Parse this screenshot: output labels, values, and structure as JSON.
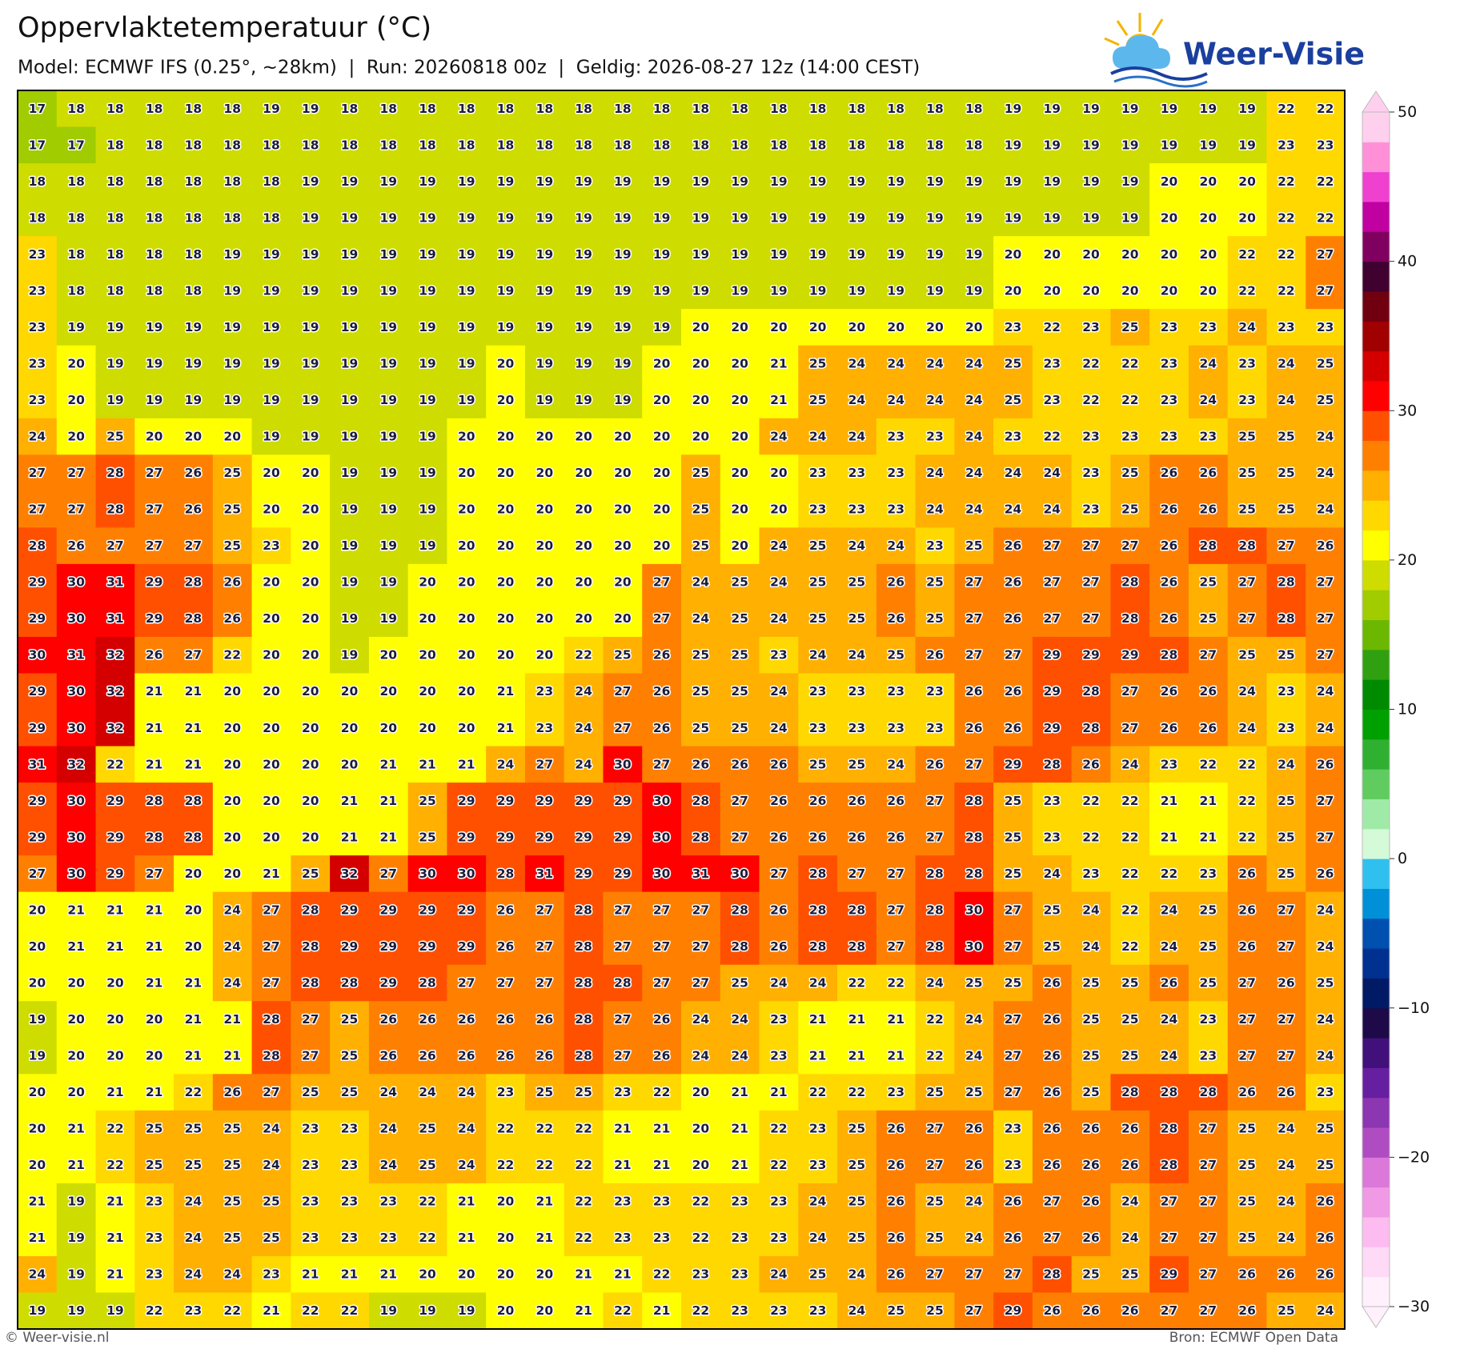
{
  "header": {
    "title": "Oppervlaktetemperatuur (°C)",
    "subtitle": "Model: ECMWF IFS (0.25°, ~28km)  |  Run: 20260818 00z  |  Geldig: 2026-08-27 12z (14:00 CEST)"
  },
  "logo": "Weer-Visie",
  "map": {
    "values": [
      [
        17,
        18,
        18,
        18,
        18,
        18,
        19,
        19,
        18,
        18,
        18,
        18,
        18,
        18,
        18,
        18,
        18,
        18,
        18,
        18,
        18,
        18,
        18,
        18,
        18,
        19,
        19,
        19,
        19,
        19,
        19,
        19,
        22,
        22
      ],
      [
        17,
        17,
        18,
        18,
        18,
        18,
        18,
        18,
        18,
        18,
        18,
        18,
        18,
        18,
        18,
        18,
        18,
        18,
        18,
        18,
        18,
        18,
        18,
        18,
        18,
        19,
        19,
        19,
        19,
        19,
        19,
        19,
        23,
        23
      ],
      [
        18,
        18,
        18,
        18,
        18,
        18,
        18,
        19,
        19,
        19,
        19,
        19,
        19,
        19,
        19,
        19,
        19,
        19,
        19,
        19,
        19,
        19,
        19,
        19,
        19,
        19,
        19,
        19,
        19,
        20,
        20,
        20,
        22,
        22
      ],
      [
        18,
        18,
        18,
        18,
        18,
        18,
        18,
        19,
        19,
        19,
        19,
        19,
        19,
        19,
        19,
        19,
        19,
        19,
        19,
        19,
        19,
        19,
        19,
        19,
        19,
        19,
        19,
        19,
        19,
        20,
        20,
        20,
        22,
        22
      ],
      [
        23,
        18,
        18,
        18,
        18,
        19,
        19,
        19,
        19,
        19,
        19,
        19,
        19,
        19,
        19,
        19,
        19,
        19,
        19,
        19,
        19,
        19,
        19,
        19,
        19,
        20,
        20,
        20,
        20,
        20,
        20,
        22,
        22,
        27
      ],
      [
        23,
        18,
        18,
        18,
        18,
        19,
        19,
        19,
        19,
        19,
        19,
        19,
        19,
        19,
        19,
        19,
        19,
        19,
        19,
        19,
        19,
        19,
        19,
        19,
        19,
        20,
        20,
        20,
        20,
        20,
        20,
        22,
        22,
        27
      ],
      [
        23,
        19,
        19,
        19,
        19,
        19,
        19,
        19,
        19,
        19,
        19,
        19,
        19,
        19,
        19,
        19,
        19,
        20,
        20,
        20,
        20,
        20,
        20,
        20,
        20,
        23,
        22,
        23,
        25,
        23,
        23,
        24,
        23,
        23
      ],
      [
        23,
        20,
        19,
        19,
        19,
        19,
        19,
        19,
        19,
        19,
        19,
        19,
        20,
        19,
        19,
        19,
        20,
        20,
        20,
        21,
        25,
        24,
        24,
        24,
        24,
        25,
        23,
        22,
        22,
        23,
        24,
        23,
        24,
        25
      ],
      [
        23,
        20,
        19,
        19,
        19,
        19,
        19,
        19,
        19,
        19,
        19,
        19,
        20,
        19,
        19,
        19,
        20,
        20,
        20,
        21,
        25,
        24,
        24,
        24,
        24,
        25,
        23,
        22,
        22,
        23,
        24,
        23,
        24,
        25
      ],
      [
        24,
        20,
        25,
        20,
        20,
        20,
        19,
        19,
        19,
        19,
        19,
        20,
        20,
        20,
        20,
        20,
        20,
        20,
        20,
        24,
        24,
        24,
        23,
        23,
        24,
        23,
        22,
        23,
        23,
        23,
        23,
        25,
        25,
        24
      ],
      [
        27,
        27,
        28,
        27,
        26,
        25,
        20,
        20,
        19,
        19,
        19,
        20,
        20,
        20,
        20,
        20,
        20,
        25,
        20,
        20,
        23,
        23,
        23,
        24,
        24,
        24,
        24,
        23,
        25,
        26,
        26,
        25,
        25,
        24
      ],
      [
        27,
        27,
        28,
        27,
        26,
        25,
        20,
        20,
        19,
        19,
        19,
        20,
        20,
        20,
        20,
        20,
        20,
        25,
        20,
        20,
        23,
        23,
        23,
        24,
        24,
        24,
        24,
        23,
        25,
        26,
        26,
        25,
        25,
        24
      ],
      [
        28,
        26,
        27,
        27,
        27,
        25,
        23,
        20,
        19,
        19,
        19,
        20,
        20,
        20,
        20,
        20,
        20,
        25,
        20,
        24,
        25,
        24,
        24,
        23,
        25,
        26,
        27,
        27,
        27,
        26,
        28,
        28,
        27,
        26
      ],
      [
        29,
        30,
        31,
        29,
        28,
        26,
        20,
        20,
        19,
        19,
        20,
        20,
        20,
        20,
        20,
        20,
        27,
        24,
        25,
        24,
        25,
        25,
        26,
        25,
        27,
        26,
        27,
        27,
        28,
        26,
        25,
        27,
        28,
        27
      ],
      [
        29,
        30,
        31,
        29,
        28,
        26,
        20,
        20,
        19,
        19,
        20,
        20,
        20,
        20,
        20,
        20,
        27,
        24,
        25,
        24,
        25,
        25,
        26,
        25,
        27,
        26,
        27,
        27,
        28,
        26,
        25,
        27,
        28,
        27
      ],
      [
        30,
        31,
        32,
        26,
        27,
        22,
        20,
        20,
        19,
        20,
        20,
        20,
        20,
        20,
        22,
        25,
        26,
        25,
        25,
        23,
        24,
        24,
        25,
        26,
        27,
        27,
        29,
        29,
        29,
        28,
        27,
        25,
        25,
        27
      ],
      [
        29,
        30,
        32,
        21,
        21,
        20,
        20,
        20,
        20,
        20,
        20,
        20,
        21,
        23,
        24,
        27,
        26,
        25,
        25,
        24,
        23,
        23,
        23,
        23,
        26,
        26,
        29,
        28,
        27,
        26,
        26,
        24,
        23,
        24
      ],
      [
        29,
        30,
        32,
        21,
        21,
        20,
        20,
        20,
        20,
        20,
        20,
        20,
        21,
        23,
        24,
        27,
        26,
        25,
        25,
        24,
        23,
        23,
        23,
        23,
        26,
        26,
        29,
        28,
        27,
        26,
        26,
        24,
        23,
        24
      ],
      [
        31,
        32,
        22,
        21,
        21,
        20,
        20,
        20,
        20,
        21,
        21,
        21,
        24,
        27,
        24,
        30,
        27,
        26,
        26,
        26,
        25,
        25,
        24,
        26,
        27,
        29,
        28,
        26,
        24,
        23,
        22,
        22,
        24,
        26
      ],
      [
        29,
        30,
        29,
        28,
        28,
        20,
        20,
        20,
        21,
        21,
        25,
        29,
        29,
        29,
        29,
        29,
        30,
        28,
        27,
        26,
        26,
        26,
        26,
        27,
        28,
        25,
        23,
        22,
        22,
        21,
        21,
        22,
        25,
        27
      ],
      [
        29,
        30,
        29,
        28,
        28,
        20,
        20,
        20,
        21,
        21,
        25,
        29,
        29,
        29,
        29,
        29,
        30,
        28,
        27,
        26,
        26,
        26,
        26,
        27,
        28,
        25,
        23,
        22,
        22,
        21,
        21,
        22,
        25,
        27
      ],
      [
        27,
        30,
        29,
        27,
        20,
        20,
        21,
        25,
        32,
        27,
        30,
        30,
        28,
        31,
        29,
        29,
        30,
        31,
        30,
        27,
        28,
        27,
        27,
        28,
        28,
        25,
        24,
        23,
        22,
        22,
        23,
        26,
        25,
        26
      ],
      [
        20,
        21,
        21,
        21,
        20,
        24,
        27,
        28,
        29,
        29,
        29,
        29,
        26,
        27,
        28,
        27,
        27,
        27,
        28,
        26,
        28,
        28,
        27,
        28,
        30,
        27,
        25,
        24,
        22,
        24,
        25,
        26,
        27,
        24
      ],
      [
        20,
        21,
        21,
        21,
        20,
        24,
        27,
        28,
        29,
        29,
        29,
        29,
        26,
        27,
        28,
        27,
        27,
        27,
        28,
        26,
        28,
        28,
        27,
        28,
        30,
        27,
        25,
        24,
        22,
        24,
        25,
        26,
        27,
        24
      ],
      [
        20,
        20,
        20,
        21,
        21,
        24,
        27,
        28,
        28,
        29,
        28,
        27,
        27,
        27,
        28,
        28,
        27,
        27,
        25,
        24,
        24,
        22,
        22,
        24,
        25,
        25,
        26,
        25,
        25,
        26,
        25,
        27,
        26,
        25
      ],
      [
        19,
        20,
        20,
        20,
        21,
        21,
        28,
        27,
        25,
        26,
        26,
        26,
        26,
        26,
        28,
        27,
        26,
        24,
        24,
        23,
        21,
        21,
        21,
        22,
        24,
        27,
        26,
        25,
        25,
        24,
        23,
        27,
        27,
        24
      ],
      [
        19,
        20,
        20,
        20,
        21,
        21,
        28,
        27,
        25,
        26,
        26,
        26,
        26,
        26,
        28,
        27,
        26,
        24,
        24,
        23,
        21,
        21,
        21,
        22,
        24,
        27,
        26,
        25,
        25,
        24,
        23,
        27,
        27,
        24
      ],
      [
        20,
        20,
        21,
        21,
        22,
        26,
        27,
        25,
        25,
        24,
        24,
        24,
        23,
        25,
        25,
        23,
        22,
        20,
        21,
        21,
        22,
        22,
        23,
        25,
        25,
        27,
        26,
        25,
        28,
        28,
        28,
        26,
        26,
        23
      ],
      [
        20,
        21,
        22,
        25,
        25,
        25,
        24,
        23,
        23,
        24,
        25,
        24,
        22,
        22,
        22,
        21,
        21,
        20,
        21,
        22,
        23,
        25,
        26,
        27,
        26,
        23,
        26,
        26,
        26,
        28,
        27,
        25,
        24,
        25
      ],
      [
        20,
        21,
        22,
        25,
        25,
        25,
        24,
        23,
        23,
        24,
        25,
        24,
        22,
        22,
        22,
        21,
        21,
        20,
        21,
        22,
        23,
        25,
        26,
        27,
        26,
        23,
        26,
        26,
        26,
        28,
        27,
        25,
        24,
        25
      ],
      [
        21,
        19,
        21,
        23,
        24,
        25,
        25,
        23,
        23,
        23,
        22,
        21,
        20,
        21,
        22,
        23,
        23,
        22,
        23,
        23,
        24,
        25,
        26,
        25,
        24,
        26,
        27,
        26,
        24,
        27,
        27,
        25,
        24,
        26
      ],
      [
        21,
        19,
        21,
        23,
        24,
        25,
        25,
        23,
        23,
        23,
        22,
        21,
        20,
        21,
        22,
        23,
        23,
        22,
        23,
        23,
        24,
        25,
        26,
        25,
        24,
        26,
        27,
        26,
        24,
        27,
        27,
        25,
        24,
        26
      ],
      [
        24,
        19,
        21,
        23,
        24,
        24,
        23,
        21,
        21,
        21,
        20,
        20,
        20,
        20,
        21,
        21,
        22,
        23,
        23,
        24,
        25,
        24,
        26,
        27,
        27,
        27,
        28,
        25,
        25,
        29,
        27,
        26,
        26,
        26
      ],
      [
        19,
        19,
        19,
        22,
        23,
        22,
        21,
        22,
        22,
        19,
        19,
        19,
        20,
        20,
        21,
        22,
        21,
        22,
        23,
        23,
        23,
        24,
        25,
        25,
        27,
        29,
        26,
        26,
        26,
        27,
        27,
        26,
        25,
        24
      ]
    ]
  },
  "colorbar": {
    "levels": [
      -30,
      -28,
      -26,
      -24,
      -22,
      -20,
      -18,
      -16,
      -14,
      -12,
      -10,
      -8,
      -6,
      -4,
      -2,
      0,
      2,
      4,
      6,
      8,
      10,
      12,
      14,
      16,
      18,
      20,
      22,
      24,
      26,
      28,
      30,
      32,
      34,
      36,
      38,
      40,
      42,
      44,
      46,
      48,
      50
    ],
    "colors": [
      "#fff0fb",
      "#ffdaf6",
      "#fcbcef",
      "#f09ae6",
      "#dc78da",
      "#b04cc2",
      "#8c36b2",
      "#661fa0",
      "#42107a",
      "#1e0a48",
      "#001a66",
      "#003090",
      "#0050b0",
      "#0090d8",
      "#30c0f0",
      "#d4fad8",
      "#a0eaa8",
      "#60cc60",
      "#30b030",
      "#00a000",
      "#008a00",
      "#30a010",
      "#6cb800",
      "#a0cc00",
      "#cedc00",
      "#ffff00",
      "#ffd800",
      "#ffb000",
      "#ff8000",
      "#ff5000",
      "#ff0000",
      "#d40000",
      "#a00000",
      "#700010",
      "#400030",
      "#800060",
      "#c000a0",
      "#f040d0",
      "#ff90d8",
      "#ffd0ee"
    ],
    "ticks": [
      50,
      40,
      30,
      20,
      10,
      0,
      {
        "value": -10,
        "label": "−10"
      },
      {
        "value": -20,
        "label": "−20"
      },
      {
        "value": -30,
        "label": "−30"
      }
    ]
  },
  "footer": {
    "left": "© Weer-visie.nl",
    "right": "Bron: ECMWF Open Data"
  }
}
